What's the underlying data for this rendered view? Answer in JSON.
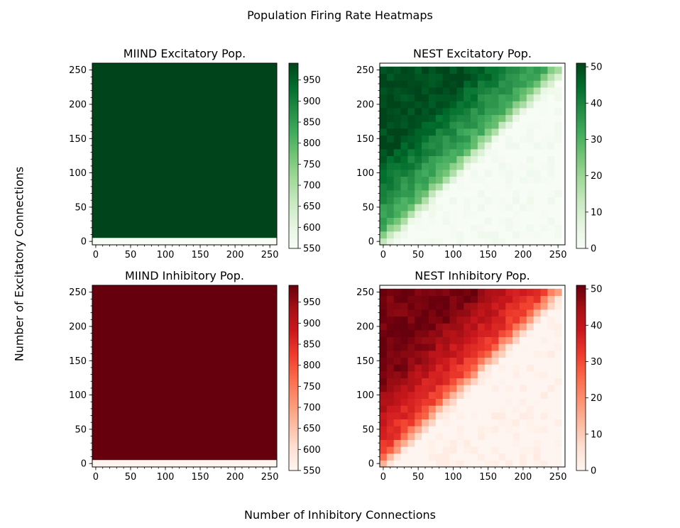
{
  "figure": {
    "suptitle": "Population Firing Rate Heatmaps",
    "xlabel": "Number of Inhibitory Connections",
    "ylabel": "Number of Excitatory Connections"
  },
  "chart_data": [
    {
      "type": "heatmap",
      "title": "MIIND Excitatory Pop.",
      "colormap": "Greens",
      "xlim": [
        0,
        255
      ],
      "ylim": [
        0,
        255
      ],
      "x_ticks": [
        0,
        50,
        100,
        150,
        200,
        250
      ],
      "y_ticks": [
        0,
        50,
        100,
        150,
        200,
        250
      ],
      "colorbar": {
        "min": 550,
        "max": 990,
        "ticks": [
          550,
          600,
          650,
          700,
          750,
          800,
          850,
          900,
          950
        ]
      },
      "description_values": {
        "row_excitatory_0": 550,
        "all_other_rows": 990
      }
    },
    {
      "type": "heatmap",
      "title": "NEST Excitatory Pop.",
      "colormap": "Greens",
      "xlim": [
        0,
        255
      ],
      "ylim": [
        0,
        255
      ],
      "x_ticks": [
        0,
        50,
        100,
        150,
        200,
        250
      ],
      "y_ticks": [
        0,
        50,
        100,
        150,
        200,
        250
      ],
      "colorbar": {
        "min": 0,
        "max": 51,
        "ticks": [
          0,
          10,
          20,
          30,
          40,
          50
        ]
      },
      "grid_rows": 26,
      "grid_cols": 26,
      "cell_step": 10,
      "pattern": "rate ~0 below diagonal (excitatory < inhibitory), ~30-50 above diagonal"
    },
    {
      "type": "heatmap",
      "title": "MIIND Inhibitory Pop.",
      "colormap": "Reds",
      "xlim": [
        0,
        255
      ],
      "ylim": [
        0,
        255
      ],
      "x_ticks": [
        0,
        50,
        100,
        150,
        200,
        250
      ],
      "y_ticks": [
        0,
        50,
        100,
        150,
        200,
        250
      ],
      "colorbar": {
        "min": 550,
        "max": 990,
        "ticks": [
          550,
          600,
          650,
          700,
          750,
          800,
          850,
          900,
          950
        ]
      },
      "description_values": {
        "row_excitatory_0": 550,
        "all_other_rows": 990
      }
    },
    {
      "type": "heatmap",
      "title": "NEST Inhibitory Pop.",
      "colormap": "Reds",
      "xlim": [
        0,
        255
      ],
      "ylim": [
        0,
        255
      ],
      "x_ticks": [
        0,
        50,
        100,
        150,
        200,
        250
      ],
      "y_ticks": [
        0,
        50,
        100,
        150,
        200,
        250
      ],
      "colorbar": {
        "min": 0,
        "max": 51,
        "ticks": [
          0,
          10,
          20,
          30,
          40,
          50
        ]
      },
      "grid_rows": 26,
      "grid_cols": 26,
      "cell_step": 10,
      "pattern": "rate ~0 below diagonal (excitatory < inhibitory), ~30-50 above diagonal"
    }
  ]
}
